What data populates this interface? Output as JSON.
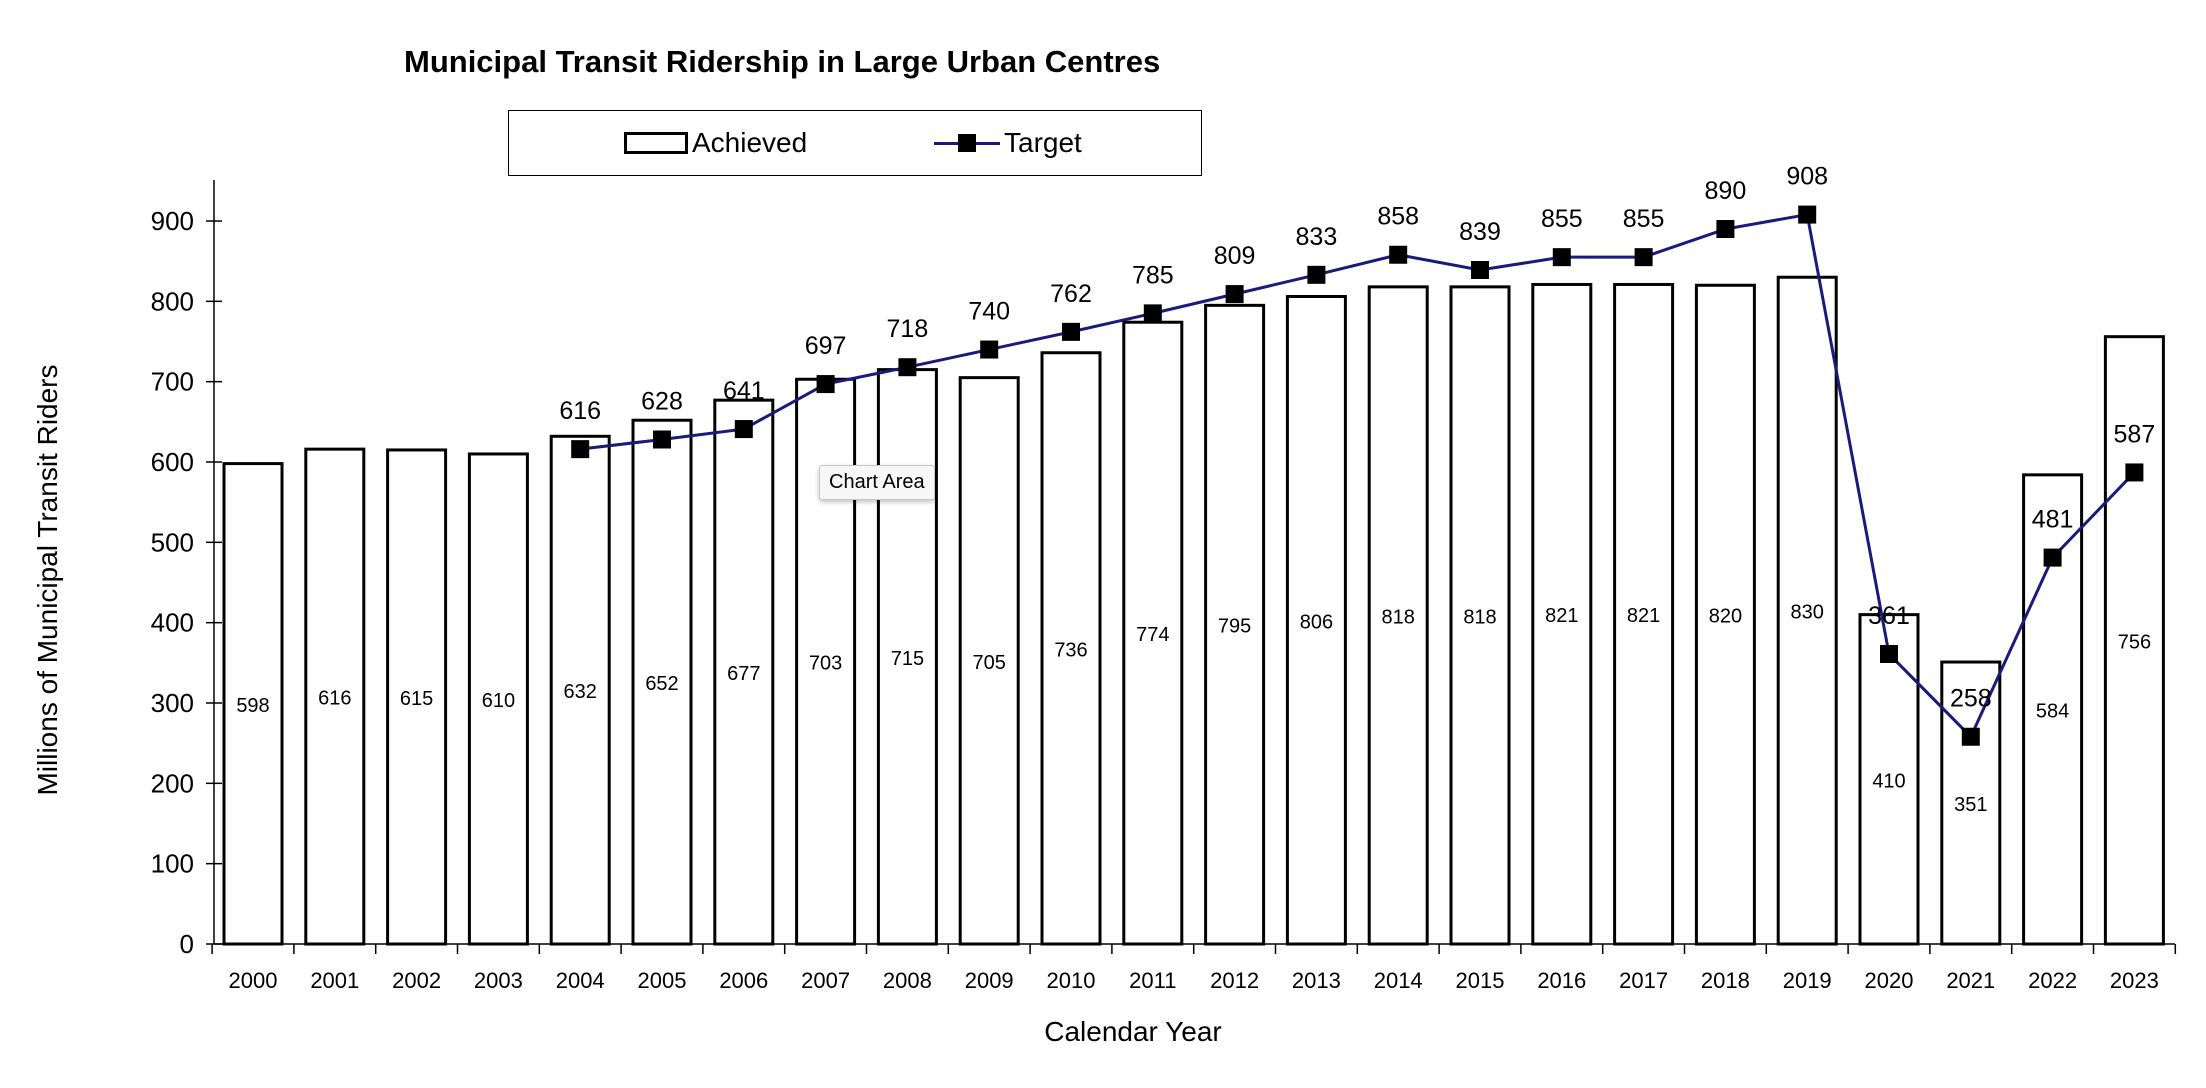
{
  "chart_data": {
    "type": "bar",
    "title": "Municipal Transit Ridership in Large Urban Centres",
    "xlabel": "Calendar Year",
    "ylabel": "Millions of Municipal  Transit Riders",
    "ylim": [
      0,
      950
    ],
    "yticks": [
      0,
      100,
      200,
      300,
      400,
      500,
      600,
      700,
      800,
      900
    ],
    "grid": false,
    "legend": "top-center",
    "categories": [
      "2000",
      "2001",
      "2002",
      "2003",
      "2004",
      "2005",
      "2006",
      "2007",
      "2008",
      "2009",
      "2010",
      "2011",
      "2012",
      "2013",
      "2014",
      "2015",
      "2016",
      "2017",
      "2018",
      "2019",
      "2020",
      "2021",
      "2022",
      "2023"
    ],
    "series": [
      {
        "name": "Achieved",
        "type": "bar",
        "color": "#ffffff",
        "edge": "#000000",
        "values": [
          598,
          616,
          615,
          610,
          632,
          652,
          677,
          703,
          715,
          705,
          736,
          774,
          795,
          806,
          818,
          818,
          821,
          821,
          820,
          830,
          410,
          351,
          584,
          756
        ]
      },
      {
        "name": "Target",
        "type": "line",
        "color": "#1a1a7a",
        "marker": "square",
        "values": [
          null,
          null,
          null,
          null,
          616,
          628,
          641,
          697,
          718,
          740,
          762,
          785,
          809,
          833,
          858,
          839,
          855,
          855,
          890,
          908,
          361,
          258,
          481,
          587
        ]
      }
    ]
  },
  "tooltip": "Chart Area"
}
